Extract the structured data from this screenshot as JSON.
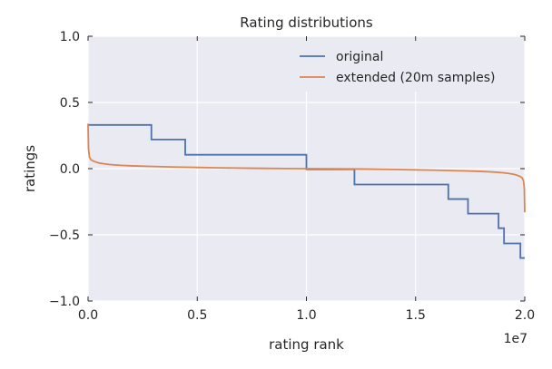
{
  "chart_data": {
    "type": "line",
    "title": "Rating distributions",
    "xlabel": "rating rank",
    "ylabel": "ratings",
    "x_offset_label": "1e7",
    "xlim": [
      0,
      2.0
    ],
    "ylim": [
      -1.0,
      1.0
    ],
    "xticks": [
      0.0,
      0.5,
      1.0,
      1.5,
      2.0
    ],
    "xtick_labels": [
      "0.0",
      "0.5",
      "1.0",
      "1.5",
      "2.0"
    ],
    "yticks": [
      -1.0,
      -0.5,
      0.0,
      0.5,
      1.0
    ],
    "ytick_labels": [
      "−1.0",
      "−0.5",
      "0.0",
      "0.5",
      "1.0"
    ],
    "grid": true,
    "legend_position": "top-right",
    "colors": {
      "background": "#eaeaf2",
      "grid": "#ffffff",
      "original": "#4c72b0",
      "extended": "#dd8452"
    },
    "series": [
      {
        "name": "original",
        "color": "#4c72b0",
        "step": true,
        "x": [
          0.0,
          0.29,
          0.29,
          0.445,
          0.445,
          1.0,
          1.0,
          1.22,
          1.22,
          1.65,
          1.65,
          1.74,
          1.74,
          1.88,
          1.88,
          1.905,
          1.905,
          1.98,
          1.98,
          2.0
        ],
        "y": [
          0.33,
          0.33,
          0.22,
          0.22,
          0.105,
          0.105,
          -0.005,
          -0.005,
          -0.12,
          -0.12,
          -0.23,
          -0.23,
          -0.34,
          -0.34,
          -0.45,
          -0.45,
          -0.565,
          -0.565,
          -0.675,
          -0.675
        ]
      },
      {
        "name": "extended (20m samples)",
        "color": "#dd8452",
        "step": false,
        "x": [
          0.0,
          0.002,
          0.006,
          0.012,
          0.02,
          0.035,
          0.05,
          0.075,
          0.1,
          0.15,
          0.2,
          0.3,
          0.4,
          0.5,
          0.6,
          0.7,
          0.8,
          0.9,
          1.0,
          1.1,
          1.2,
          1.3,
          1.4,
          1.5,
          1.6,
          1.7,
          1.8,
          1.85,
          1.9,
          1.925,
          1.95,
          1.965,
          1.98,
          1.988,
          1.994,
          1.998,
          2.0
        ],
        "y": [
          0.34,
          0.15,
          0.09,
          0.07,
          0.06,
          0.05,
          0.043,
          0.036,
          0.031,
          0.025,
          0.021,
          0.016,
          0.012,
          0.009,
          0.006,
          0.004,
          0.002,
          0.001,
          0.0,
          -0.001,
          -0.002,
          -0.004,
          -0.006,
          -0.009,
          -0.012,
          -0.016,
          -0.021,
          -0.025,
          -0.031,
          -0.036,
          -0.043,
          -0.05,
          -0.06,
          -0.07,
          -0.09,
          -0.15,
          -0.33
        ]
      }
    ]
  }
}
